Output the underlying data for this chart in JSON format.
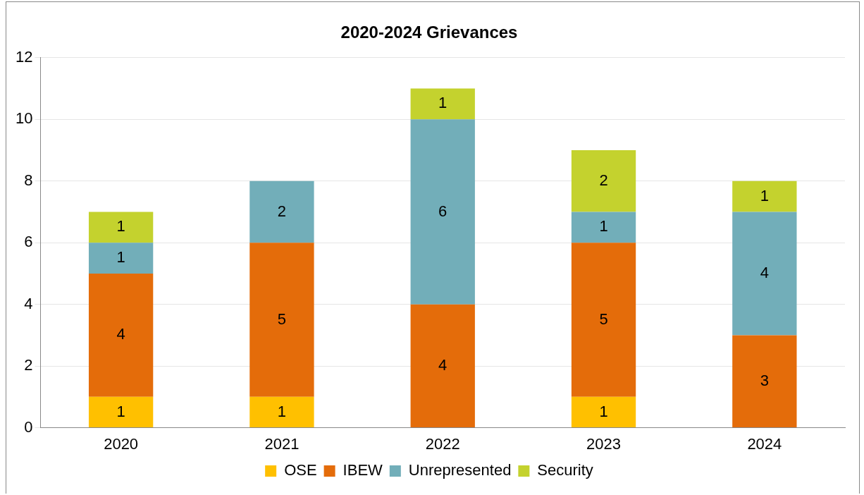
{
  "chart_data": {
    "type": "bar",
    "title": "2020-2024 Grievances",
    "categories": [
      "2020",
      "2021",
      "2022",
      "2023",
      "2024"
    ],
    "series": [
      {
        "name": "OSE",
        "color": "#ffc000",
        "values": [
          1,
          1,
          null,
          1,
          null
        ]
      },
      {
        "name": "IBEW",
        "color": "#e46c0a",
        "values": [
          4,
          5,
          4,
          5,
          3
        ]
      },
      {
        "name": "Unrepresented",
        "color": "#72aeb9",
        "values": [
          1,
          2,
          6,
          1,
          4
        ]
      },
      {
        "name": "Security",
        "color": "#c4d22e",
        "values": [
          1,
          null,
          1,
          2,
          1
        ]
      }
    ],
    "stacked": true,
    "ylim": [
      0,
      12
    ],
    "yticks": [
      0,
      2,
      4,
      6,
      8,
      10,
      12
    ],
    "grid": "y",
    "legend": "bottom",
    "data_labels": true
  }
}
